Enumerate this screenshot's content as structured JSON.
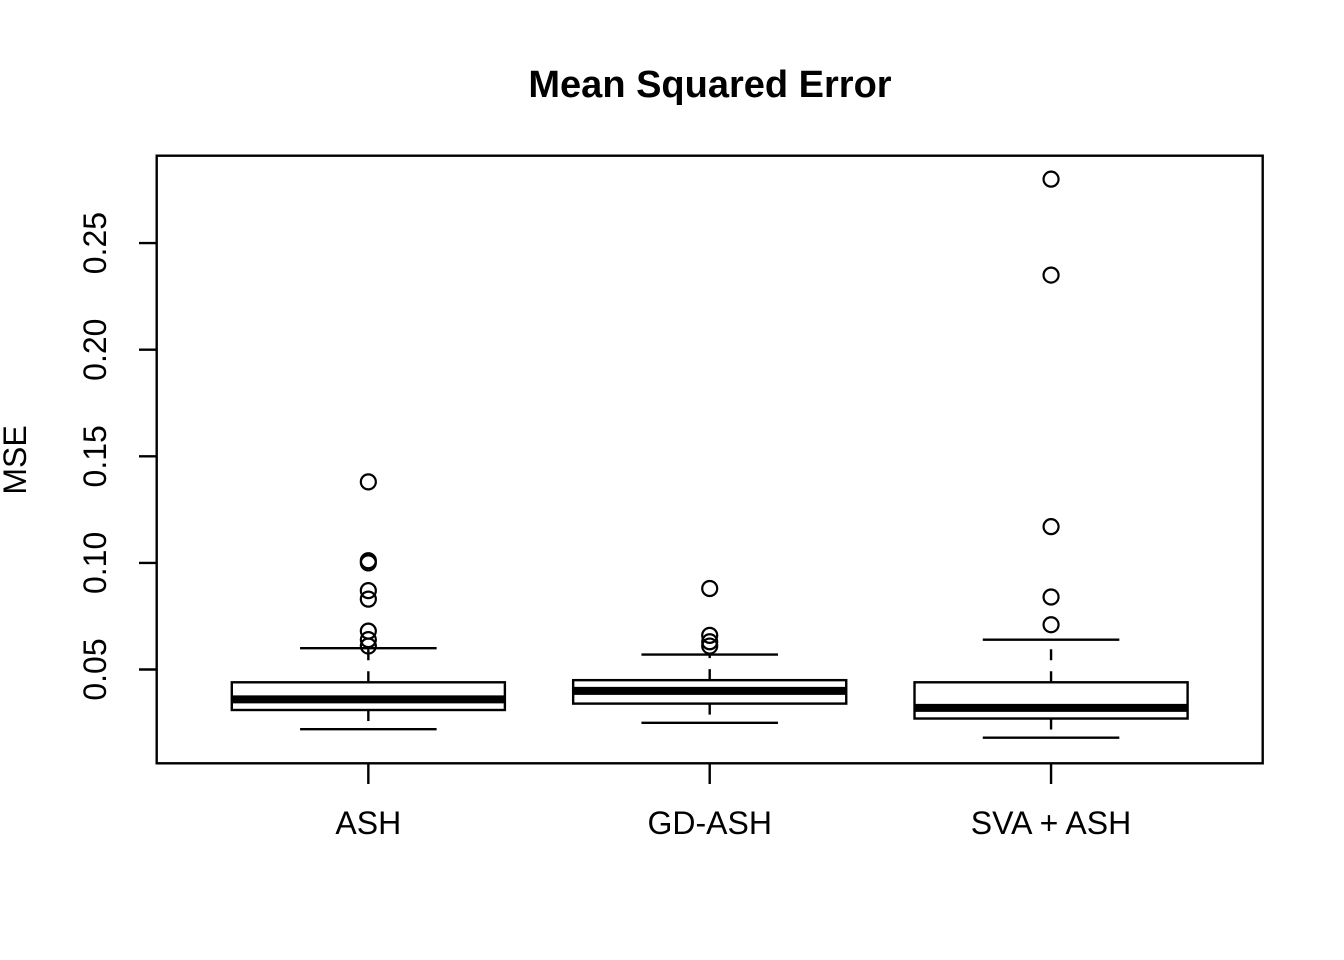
{
  "title": "Mean Squared Error",
  "ylabel": "MSE",
  "chart_data": {
    "type": "boxplot",
    "title": "Mean Squared Error",
    "xlabel": "",
    "ylabel": "MSE",
    "categories": [
      "ASH",
      "GD-ASH",
      "SVA + ASH"
    ],
    "y_ticks": [
      0.05,
      0.1,
      0.15,
      0.2,
      0.25
    ],
    "y_tick_labels": [
      "0.05",
      "0.10",
      "0.15",
      "0.20",
      "0.25"
    ],
    "ylim": [
      0.006,
      0.291
    ],
    "grid": "off",
    "legend": "none",
    "series": [
      {
        "name": "ASH",
        "whisker_low": 0.022,
        "q1": 0.031,
        "median": 0.036,
        "q3": 0.044,
        "whisker_high": 0.06,
        "outliers": [
          0.061,
          0.064,
          0.068,
          0.083,
          0.087,
          0.1,
          0.101,
          0.138
        ]
      },
      {
        "name": "GD-ASH",
        "whisker_low": 0.025,
        "q1": 0.034,
        "median": 0.04,
        "q3": 0.045,
        "whisker_high": 0.057,
        "outliers": [
          0.061,
          0.063,
          0.066,
          0.088
        ]
      },
      {
        "name": "SVA + ASH",
        "whisker_low": 0.018,
        "q1": 0.027,
        "median": 0.032,
        "q3": 0.044,
        "whisker_high": 0.064,
        "outliers": [
          0.071,
          0.084,
          0.117,
          0.235,
          0.28
        ]
      }
    ],
    "colors": {
      "stroke": "#000000",
      "box_fill": "#ffffff",
      "background": "#ffffff"
    }
  }
}
